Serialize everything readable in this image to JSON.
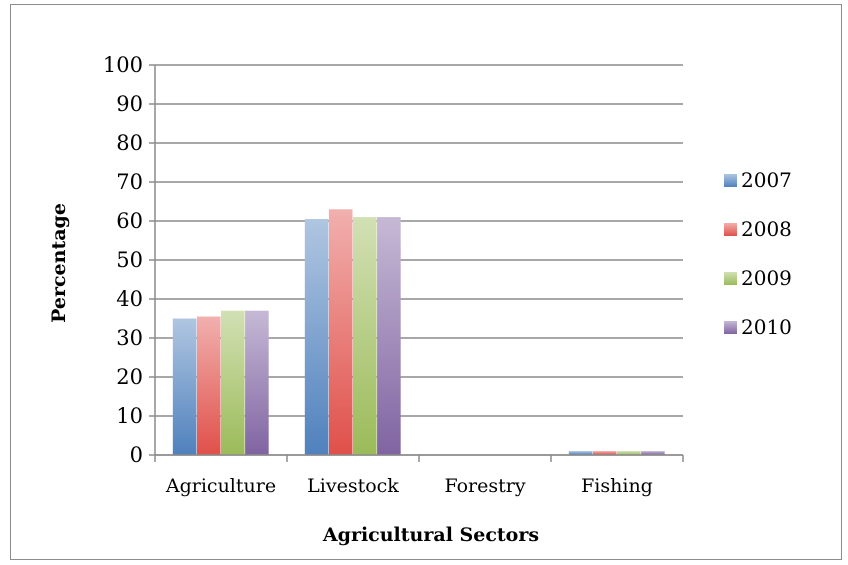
{
  "chart_data": {
    "type": "bar",
    "title": "",
    "xlabel": "Agricultural Sectors",
    "ylabel": "Percentage",
    "ylim": [
      0,
      100
    ],
    "yticks": [
      0,
      10,
      20,
      30,
      40,
      50,
      60,
      70,
      80,
      90,
      100
    ],
    "grid": true,
    "legend_position": "right",
    "categories": [
      "Agriculture",
      "Livestock",
      "Forestry",
      "Fishing"
    ],
    "series": [
      {
        "name": "2007",
        "color": "#4f81bd",
        "values": [
          35,
          60.5,
          0,
          1
        ]
      },
      {
        "name": "2008",
        "color": "#e0504a",
        "values": [
          35.5,
          63,
          0,
          1
        ]
      },
      {
        "name": "2009",
        "color": "#9bbb59",
        "values": [
          37,
          61,
          0,
          1
        ]
      },
      {
        "name": "2010",
        "color": "#8064a2",
        "values": [
          37,
          61,
          0,
          1
        ]
      }
    ]
  }
}
